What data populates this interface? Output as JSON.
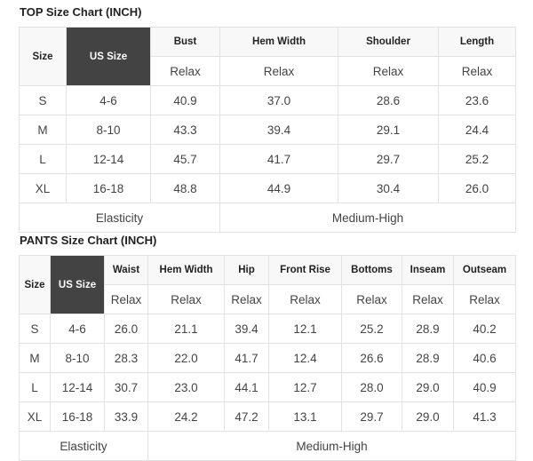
{
  "top": {
    "title": "TOP Size Chart (INCH)",
    "size_header": "Size",
    "us_size_header": "US Size",
    "columns": [
      "Bust",
      "Hem Width",
      "Shoulder",
      "Length"
    ],
    "fit": [
      "Relax",
      "Relax",
      "Relax",
      "Relax"
    ],
    "rows": [
      {
        "size": "S",
        "us": "4-6",
        "values": [
          "40.9",
          "37.0",
          "28.6",
          "23.6"
        ]
      },
      {
        "size": "M",
        "us": "8-10",
        "values": [
          "43.3",
          "39.4",
          "29.1",
          "24.4"
        ]
      },
      {
        "size": "L",
        "us": "12-14",
        "values": [
          "45.7",
          "41.7",
          "29.7",
          "25.2"
        ]
      },
      {
        "size": "XL",
        "us": "16-18",
        "values": [
          "48.8",
          "44.9",
          "30.4",
          "26.0"
        ]
      }
    ],
    "elasticity_label": "Elasticity",
    "elasticity_value": "Medium-High"
  },
  "pants": {
    "title": "PANTS Size Chart (INCH)",
    "size_header": "Size",
    "us_size_header": "US Size",
    "columns": [
      "Waist",
      "Hem Width",
      "Hip",
      "Front Rise",
      "Bottoms",
      "Inseam",
      "Outseam"
    ],
    "fit": [
      "Relax",
      "Relax",
      "Relax",
      "Relax",
      "Relax",
      "Relax",
      "Relax"
    ],
    "rows": [
      {
        "size": "S",
        "us": "4-6",
        "values": [
          "26.0",
          "21.1",
          "39.4",
          "12.1",
          "25.2",
          "28.9",
          "40.2"
        ]
      },
      {
        "size": "M",
        "us": "8-10",
        "values": [
          "28.3",
          "22.0",
          "41.7",
          "12.4",
          "26.6",
          "28.9",
          "40.6"
        ]
      },
      {
        "size": "L",
        "us": "12-14",
        "values": [
          "30.7",
          "23.0",
          "44.1",
          "12.7",
          "28.0",
          "29.0",
          "40.9"
        ]
      },
      {
        "size": "XL",
        "us": "16-18",
        "values": [
          "33.9",
          "24.2",
          "47.2",
          "13.1",
          "29.7",
          "29.0",
          "41.3"
        ]
      }
    ],
    "elasticity_label": "Elasticity",
    "elasticity_value": "Medium-High"
  }
}
